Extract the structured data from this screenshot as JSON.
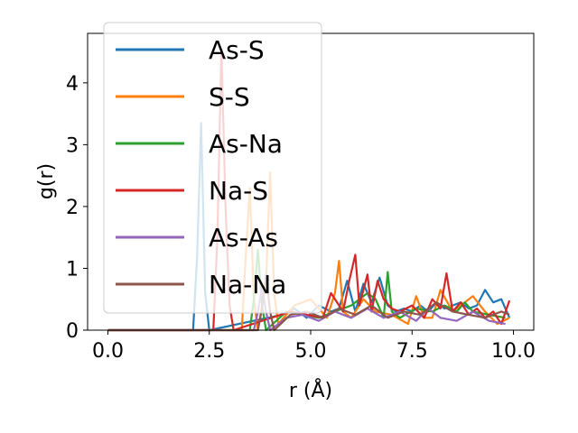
{
  "chart_data": {
    "type": "line",
    "xlabel": "r (Å)",
    "ylabel": "g(r)",
    "xlim": [
      -0.5,
      10.5
    ],
    "ylim": [
      0,
      4.8
    ],
    "xticks": [
      0.0,
      2.5,
      5.0,
      7.5,
      10.0
    ],
    "xtick_labels": [
      "0.0",
      "2.5",
      "5.0",
      "7.5",
      "10.0"
    ],
    "yticks": [
      0,
      1,
      2,
      3,
      4
    ],
    "ytick_labels": [
      "0",
      "1",
      "2",
      "3",
      "4"
    ],
    "grid": false,
    "legend_position": "upper-left",
    "series": [
      {
        "name": "As-S",
        "color": "#1f77b4",
        "x": [
          0.0,
          2.1,
          2.2,
          2.3,
          2.4,
          2.5,
          4.3,
          4.6,
          4.9,
          5.2,
          5.5,
          5.7,
          5.9,
          6.1,
          6.3,
          6.5,
          6.7,
          6.9,
          7.1,
          7.3,
          7.5,
          7.7,
          7.9,
          8.1,
          8.3,
          8.5,
          8.7,
          8.9,
          9.1,
          9.3,
          9.5,
          9.7,
          9.9
        ],
        "y": [
          0.0,
          0.0,
          1.2,
          3.35,
          0.6,
          0.0,
          0.25,
          0.35,
          0.2,
          0.4,
          0.3,
          0.35,
          0.8,
          0.3,
          0.75,
          0.45,
          0.85,
          0.4,
          0.3,
          0.35,
          0.3,
          0.4,
          0.3,
          0.45,
          0.35,
          0.4,
          0.45,
          0.35,
          0.4,
          0.65,
          0.45,
          0.5,
          0.2
        ]
      },
      {
        "name": "S-S",
        "color": "#ff7f0e",
        "x": [
          0.0,
          3.3,
          3.4,
          3.5,
          3.6,
          3.7,
          3.9,
          4.0,
          4.1,
          4.2,
          4.6,
          5.0,
          5.4,
          5.6,
          5.7,
          5.8,
          6.0,
          6.3,
          6.6,
          7.0,
          7.4,
          7.6,
          7.8,
          8.0,
          8.2,
          8.5,
          8.7,
          9.0,
          9.3,
          9.6,
          9.9
        ],
        "y": [
          0.0,
          0.0,
          1.2,
          2.3,
          0.5,
          0.0,
          0.8,
          2.55,
          0.6,
          0.1,
          0.4,
          0.5,
          0.2,
          0.6,
          1.12,
          0.3,
          0.2,
          0.5,
          0.3,
          0.25,
          0.1,
          0.55,
          0.2,
          0.2,
          0.65,
          0.3,
          0.4,
          0.55,
          0.3,
          0.1,
          0.2
        ]
      },
      {
        "name": "As-Na",
        "color": "#2ca02c",
        "x": [
          0.0,
          3.5,
          3.6,
          3.7,
          3.8,
          3.9,
          4.4,
          4.8,
          5.2,
          5.6,
          6.0,
          6.4,
          6.6,
          6.8,
          6.9,
          7.0,
          7.2,
          7.6,
          8.0,
          8.3,
          8.6,
          8.8,
          9.0,
          9.4,
          9.8
        ],
        "y": [
          0.0,
          0.0,
          0.5,
          1.3,
          0.4,
          0.0,
          0.3,
          0.25,
          0.2,
          0.3,
          0.4,
          0.6,
          0.5,
          0.2,
          0.94,
          0.3,
          0.2,
          0.35,
          0.3,
          0.4,
          0.3,
          0.45,
          0.3,
          0.25,
          0.2
        ]
      },
      {
        "name": "Na-S",
        "color": "#d62728",
        "x": [
          0.0,
          2.6,
          2.7,
          2.8,
          2.9,
          3.0,
          3.1,
          4.5,
          4.9,
          5.3,
          5.5,
          5.8,
          5.95,
          6.1,
          6.2,
          6.4,
          6.5,
          6.65,
          6.8,
          7.0,
          7.2,
          7.5,
          7.8,
          8.0,
          8.2,
          8.35,
          8.5,
          8.7,
          8.9,
          9.1,
          9.3,
          9.5,
          9.7,
          9.9
        ],
        "y": [
          0.0,
          0.0,
          1.5,
          4.55,
          2.0,
          0.4,
          0.0,
          0.3,
          0.25,
          0.2,
          0.6,
          0.3,
          0.8,
          1.22,
          0.4,
          0.9,
          0.3,
          0.8,
          0.5,
          0.35,
          0.3,
          0.4,
          0.2,
          0.5,
          0.35,
          0.92,
          0.3,
          0.45,
          0.25,
          0.35,
          0.2,
          0.3,
          0.1,
          0.48
        ]
      },
      {
        "name": "As-As",
        "color": "#9467bd",
        "x": [
          0.0,
          3.6,
          3.7,
          3.8,
          3.9,
          4.0,
          4.4,
          4.8,
          5.2,
          5.6,
          6.0,
          6.4,
          6.8,
          7.2,
          7.6,
          7.9,
          8.2,
          8.6,
          9.0,
          9.4,
          9.8
        ],
        "y": [
          0.0,
          0.0,
          0.3,
          0.7,
          0.3,
          0.0,
          0.2,
          0.25,
          0.15,
          0.3,
          0.2,
          0.35,
          0.2,
          0.3,
          0.15,
          0.35,
          0.2,
          0.15,
          0.3,
          0.15,
          0.1
        ]
      },
      {
        "name": "Na-Na",
        "color": "#8c564b",
        "x": [
          0.0,
          3.7,
          3.8,
          3.9,
          4.0,
          4.1,
          4.5,
          4.9,
          5.3,
          5.7,
          6.1,
          6.5,
          6.9,
          7.3,
          7.7,
          8.1,
          8.5,
          8.9,
          9.3,
          9.7,
          9.9
        ],
        "y": [
          0.0,
          0.0,
          0.35,
          0.9,
          0.3,
          0.0,
          0.25,
          0.3,
          0.2,
          0.35,
          0.25,
          0.4,
          0.2,
          0.3,
          0.25,
          0.45,
          0.3,
          0.25,
          0.2,
          0.3,
          0.25
        ]
      }
    ]
  }
}
